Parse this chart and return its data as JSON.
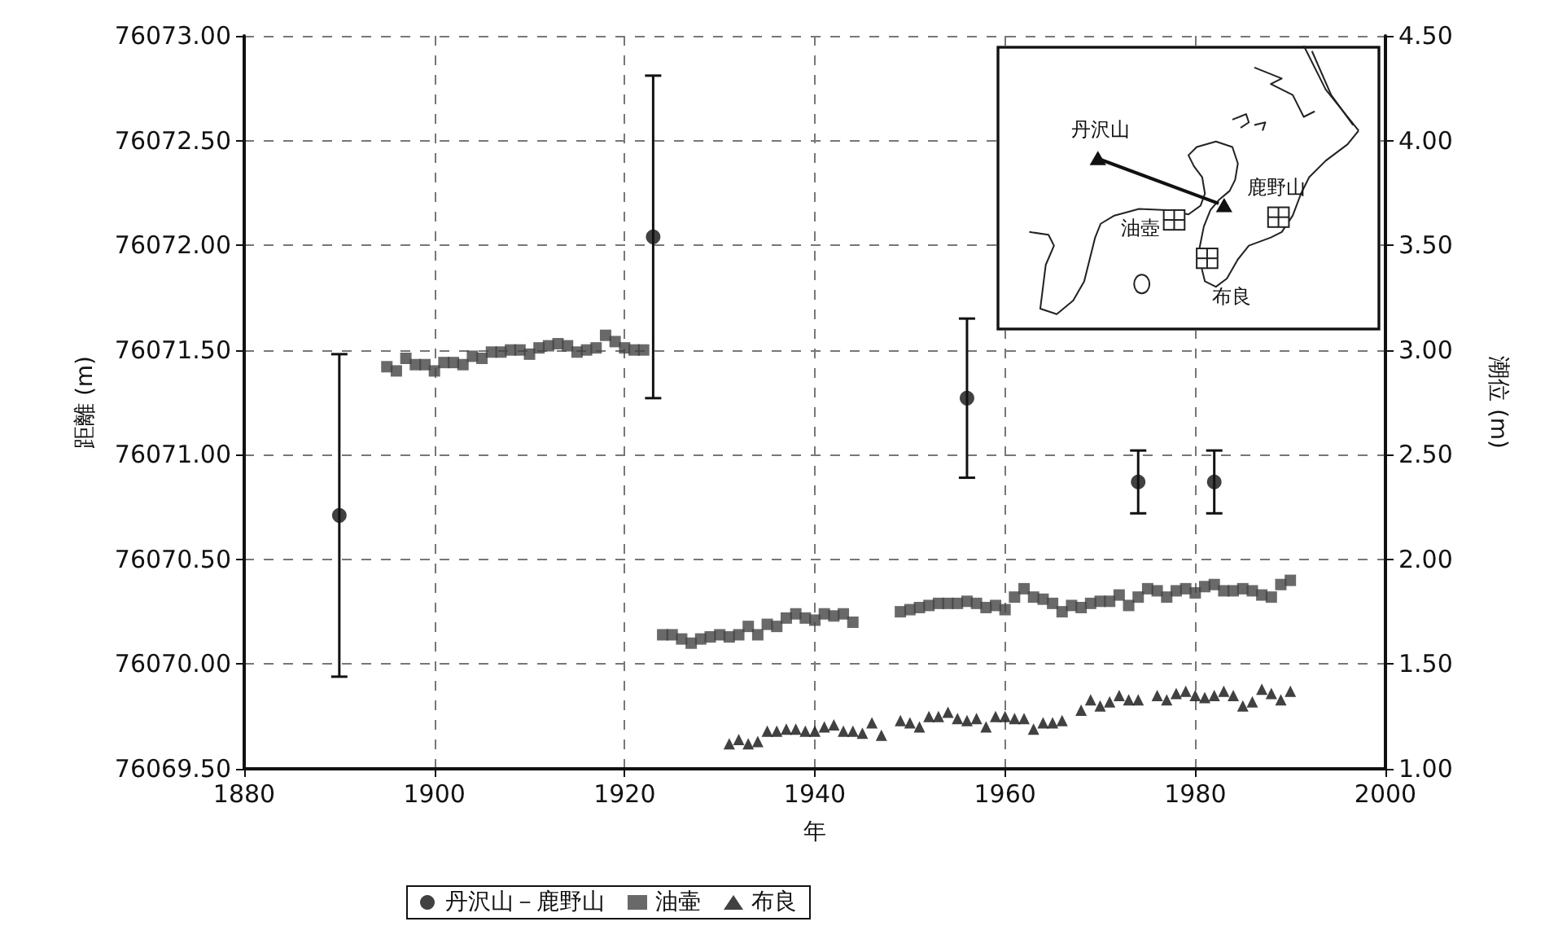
{
  "chart_data": {
    "type": "scatter",
    "xlabel": "年",
    "ylabel": "距離 (m)",
    "y2label": "潮位 (m)",
    "xlim": [
      1880,
      2000
    ],
    "xticks": [
      1880,
      1900,
      1920,
      1940,
      1960,
      1980,
      2000
    ],
    "ylim": [
      76069.5,
      76073
    ],
    "yticks": [
      {
        "value": 76069.5,
        "label": "76069.50"
      },
      {
        "value": 76070,
        "label": "76070.00"
      },
      {
        "value": 76070.5,
        "label": "76070.50"
      },
      {
        "value": 76071,
        "label": "76071.00"
      },
      {
        "value": 76071.5,
        "label": "76071.50"
      },
      {
        "value": 76072,
        "label": "76072.00"
      },
      {
        "value": 76072.5,
        "label": "76072.50"
      },
      {
        "value": 76073,
        "label": "76073.00"
      }
    ],
    "y2lim": [
      1,
      4.5
    ],
    "y2ticks": [
      {
        "value": 1,
        "label": "1.00"
      },
      {
        "value": 1.5,
        "label": "1.50"
      },
      {
        "value": 2,
        "label": "2.00"
      },
      {
        "value": 2.5,
        "label": "2.50"
      },
      {
        "value": 3,
        "label": "3.00"
      },
      {
        "value": 3.5,
        "label": "3.50"
      },
      {
        "value": 4,
        "label": "4.00"
      },
      {
        "value": 4.5,
        "label": "4.50"
      }
    ],
    "grid": true,
    "legend": "bottom",
    "annotations": [
      "丹沢山",
      "鹿野山",
      "油壺",
      "布良"
    ],
    "series": [
      {
        "name": "丹沢山－鹿野山",
        "marker": "circle",
        "color": "#111111",
        "x": [
          1890,
          1923,
          1956,
          1974,
          1982
        ],
        "values": [
          76070.71,
          76072.04,
          76071.27,
          76070.87,
          76070.87
        ],
        "errors": [
          0.77,
          0.77,
          0.38,
          0.15,
          0.15
        ]
      },
      {
        "name": "油壷",
        "marker": "square",
        "color": "#444444",
        "axis": "y2",
        "x": [
          1895,
          1896,
          1897,
          1898,
          1899,
          1900,
          1901,
          1902,
          1903,
          1904,
          1905,
          1906,
          1907,
          1908,
          1909,
          1910,
          1911,
          1912,
          1913,
          1914,
          1915,
          1916,
          1917,
          1918,
          1919,
          1920,
          1921,
          1922,
          1924,
          1925,
          1926,
          1927,
          1928,
          1929,
          1930,
          1931,
          1932,
          1933,
          1934,
          1935,
          1936,
          1937,
          1938,
          1939,
          1940,
          1941,
          1942,
          1943,
          1944,
          1949,
          1950,
          1951,
          1952,
          1953,
          1954,
          1955,
          1956,
          1957,
          1958,
          1959,
          1960,
          1961,
          1962,
          1963,
          1964,
          1965,
          1966,
          1967,
          1968,
          1969,
          1970,
          1971,
          1972,
          1973,
          1974,
          1975,
          1976,
          1977,
          1978,
          1979,
          1980,
          1981,
          1982,
          1983,
          1984,
          1985,
          1986,
          1987,
          1988,
          1989,
          1990
        ],
        "values": [
          2.92,
          2.9,
          2.96,
          2.93,
          2.93,
          2.9,
          2.94,
          2.94,
          2.93,
          2.97,
          2.96,
          2.99,
          2.99,
          3.0,
          3.0,
          2.98,
          3.01,
          3.02,
          3.03,
          3.02,
          2.99,
          3.0,
          3.01,
          3.07,
          3.04,
          3.01,
          3.0,
          3.0,
          1.64,
          1.64,
          1.62,
          1.6,
          1.62,
          1.63,
          1.64,
          1.63,
          1.64,
          1.68,
          1.64,
          1.69,
          1.68,
          1.72,
          1.74,
          1.72,
          1.71,
          1.74,
          1.73,
          1.74,
          1.7,
          1.75,
          1.76,
          1.77,
          1.78,
          1.79,
          1.79,
          1.79,
          1.8,
          1.79,
          1.77,
          1.78,
          1.76,
          1.82,
          1.86,
          1.82,
          1.81,
          1.79,
          1.75,
          1.78,
          1.77,
          1.79,
          1.8,
          1.8,
          1.83,
          1.78,
          1.82,
          1.86,
          1.85,
          1.82,
          1.85,
          1.86,
          1.84,
          1.87,
          1.88,
          1.85,
          1.85,
          1.86,
          1.85,
          1.83,
          1.82,
          1.88,
          1.9
        ]
      },
      {
        "name": "布良",
        "marker": "triangle",
        "color": "#111111",
        "axis": "y2",
        "x": [
          1931,
          1932,
          1933,
          1934,
          1935,
          1936,
          1937,
          1938,
          1939,
          1940,
          1941,
          1942,
          1943,
          1944,
          1945,
          1946,
          1947,
          1949,
          1950,
          1951,
          1952,
          1953,
          1954,
          1955,
          1956,
          1957,
          1958,
          1959,
          1960,
          1961,
          1962,
          1963,
          1964,
          1965,
          1966,
          1968,
          1969,
          1970,
          1971,
          1972,
          1973,
          1974,
          1976,
          1977,
          1978,
          1979,
          1980,
          1981,
          1982,
          1983,
          1984,
          1985,
          1986,
          1987,
          1988,
          1989,
          1990
        ],
        "values": [
          1.12,
          1.14,
          1.12,
          1.13,
          1.18,
          1.18,
          1.19,
          1.19,
          1.18,
          1.18,
          1.2,
          1.21,
          1.18,
          1.18,
          1.17,
          1.22,
          1.16,
          1.23,
          1.22,
          1.2,
          1.25,
          1.25,
          1.27,
          1.24,
          1.23,
          1.24,
          1.2,
          1.25,
          1.25,
          1.24,
          1.24,
          1.19,
          1.22,
          1.22,
          1.23,
          1.28,
          1.33,
          1.3,
          1.32,
          1.35,
          1.33,
          1.33,
          1.35,
          1.33,
          1.36,
          1.37,
          1.35,
          1.34,
          1.35,
          1.37,
          1.35,
          1.3,
          1.32,
          1.38,
          1.36,
          1.33,
          1.37
        ]
      }
    ]
  }
}
